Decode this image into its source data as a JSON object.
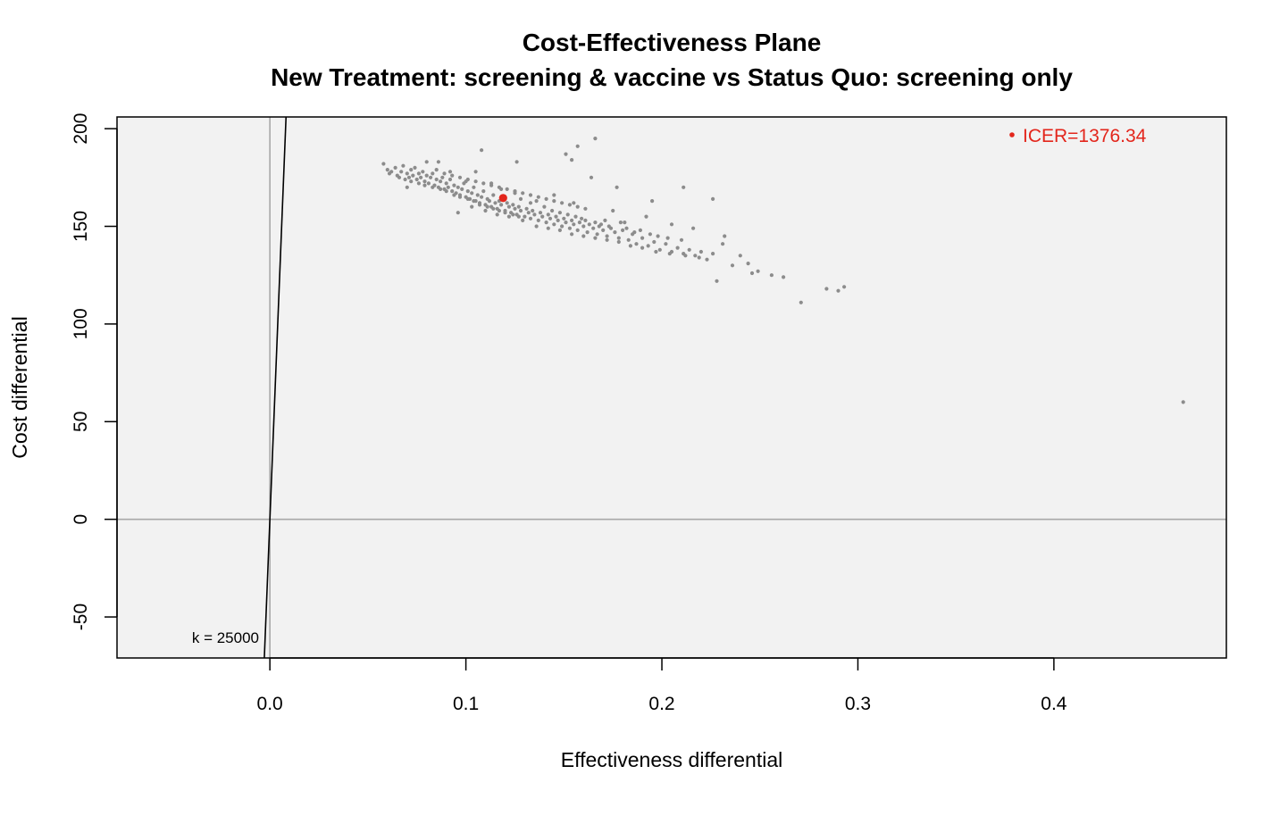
{
  "chart_data": {
    "type": "scatter",
    "title": "Cost-Effectiveness Plane",
    "subtitle": "New Treatment: screening & vaccine vs Status Quo: screening only",
    "xlabel": "Effectiveness differential",
    "ylabel": "Cost differential",
    "xlim": [
      -0.078,
      0.488
    ],
    "ylim": [
      -71,
      206
    ],
    "x_ticks": [
      0.0,
      0.1,
      0.2,
      0.3,
      0.4
    ],
    "x_tick_labels": [
      "0.0",
      "0.1",
      "0.2",
      "0.3",
      "0.4"
    ],
    "y_ticks": [
      -50,
      0,
      50,
      100,
      150,
      200
    ],
    "y_tick_labels": [
      "-50",
      "0",
      "50",
      "100",
      "150",
      "200"
    ],
    "threshold_label": "k = 25000",
    "threshold_k": 25000,
    "icer_label": "ICER=1376.34",
    "icer_point": {
      "x": 0.119,
      "y": 164.5
    },
    "colors": {
      "points": "#8c8c8c",
      "icer": "#e3261c",
      "plot_background": "#f2f2f2",
      "reference_lines": "#a8a8a8",
      "threshold_line": "#000000"
    },
    "grid": false,
    "legend_position": "top-right",
    "points": [
      [
        0.058,
        182
      ],
      [
        0.06,
        179
      ],
      [
        0.062,
        178
      ],
      [
        0.064,
        180
      ],
      [
        0.065,
        176
      ],
      [
        0.067,
        178
      ],
      [
        0.068,
        181
      ],
      [
        0.07,
        177
      ],
      [
        0.071,
        175
      ],
      [
        0.072,
        179
      ],
      [
        0.073,
        176
      ],
      [
        0.074,
        180
      ],
      [
        0.075,
        174
      ],
      [
        0.076,
        177
      ],
      [
        0.077,
        175
      ],
      [
        0.078,
        178
      ],
      [
        0.079,
        173
      ],
      [
        0.08,
        176
      ],
      [
        0.081,
        172
      ],
      [
        0.082,
        175
      ],
      [
        0.083,
        177
      ],
      [
        0.084,
        171
      ],
      [
        0.085,
        174
      ],
      [
        0.086,
        183
      ],
      [
        0.086,
        170
      ],
      [
        0.087,
        173
      ],
      [
        0.088,
        175
      ],
      [
        0.089,
        169
      ],
      [
        0.09,
        172
      ],
      [
        0.091,
        170
      ],
      [
        0.092,
        174
      ],
      [
        0.093,
        168
      ],
      [
        0.094,
        171
      ],
      [
        0.095,
        167
      ],
      [
        0.096,
        170
      ],
      [
        0.097,
        166
      ],
      [
        0.098,
        169
      ],
      [
        0.099,
        172
      ],
      [
        0.1,
        165
      ],
      [
        0.101,
        168
      ],
      [
        0.102,
        164
      ],
      [
        0.103,
        167
      ],
      [
        0.104,
        170
      ],
      [
        0.105,
        163
      ],
      [
        0.106,
        166
      ],
      [
        0.107,
        162
      ],
      [
        0.108,
        165
      ],
      [
        0.109,
        168
      ],
      [
        0.11,
        161
      ],
      [
        0.111,
        164
      ],
      [
        0.112,
        163
      ],
      [
        0.113,
        160
      ],
      [
        0.114,
        166
      ],
      [
        0.115,
        162
      ],
      [
        0.116,
        159
      ],
      [
        0.117,
        163
      ],
      [
        0.118,
        161
      ],
      [
        0.12,
        158
      ],
      [
        0.121,
        162
      ],
      [
        0.122,
        160
      ],
      [
        0.123,
        157
      ],
      [
        0.124,
        161
      ],
      [
        0.125,
        159
      ],
      [
        0.126,
        156
      ],
      [
        0.127,
        160
      ],
      [
        0.128,
        158
      ],
      [
        0.13,
        155
      ],
      [
        0.131,
        159
      ],
      [
        0.132,
        157
      ],
      [
        0.133,
        154
      ],
      [
        0.134,
        158
      ],
      [
        0.135,
        156
      ],
      [
        0.137,
        153
      ],
      [
        0.138,
        157
      ],
      [
        0.139,
        155
      ],
      [
        0.141,
        152
      ],
      [
        0.142,
        156
      ],
      [
        0.143,
        154
      ],
      [
        0.145,
        151
      ],
      [
        0.146,
        155
      ],
      [
        0.147,
        153
      ],
      [
        0.149,
        150
      ],
      [
        0.15,
        154
      ],
      [
        0.151,
        152
      ],
      [
        0.153,
        149
      ],
      [
        0.154,
        153
      ],
      [
        0.155,
        151
      ],
      [
        0.157,
        148
      ],
      [
        0.158,
        152
      ],
      [
        0.16,
        150
      ],
      [
        0.162,
        147
      ],
      [
        0.163,
        151
      ],
      [
        0.165,
        149
      ],
      [
        0.167,
        146
      ],
      [
        0.168,
        150
      ],
      [
        0.17,
        148
      ],
      [
        0.172,
        145
      ],
      [
        0.174,
        149
      ],
      [
        0.176,
        147
      ],
      [
        0.178,
        144
      ],
      [
        0.18,
        148
      ],
      [
        0.183,
        143
      ],
      [
        0.185,
        146
      ],
      [
        0.187,
        141
      ],
      [
        0.19,
        144
      ],
      [
        0.193,
        140
      ],
      [
        0.196,
        142
      ],
      [
        0.199,
        138
      ],
      [
        0.202,
        141
      ],
      [
        0.205,
        137
      ],
      [
        0.208,
        139
      ],
      [
        0.211,
        136
      ],
      [
        0.214,
        138
      ],
      [
        0.217,
        135
      ],
      [
        0.22,
        137
      ],
      [
        0.223,
        133
      ],
      [
        0.226,
        136
      ],
      [
        0.231,
        141
      ],
      [
        0.236,
        130
      ],
      [
        0.24,
        135
      ],
      [
        0.246,
        126
      ],
      [
        0.249,
        127
      ],
      [
        0.256,
        125
      ],
      [
        0.262,
        124
      ],
      [
        0.228,
        122
      ],
      [
        0.271,
        111
      ],
      [
        0.284,
        118
      ],
      [
        0.29,
        117
      ],
      [
        0.293,
        119
      ],
      [
        0.466,
        60
      ],
      [
        0.108,
        189
      ],
      [
        0.151,
        187
      ],
      [
        0.157,
        191
      ],
      [
        0.166,
        195
      ],
      [
        0.154,
        184
      ],
      [
        0.126,
        183
      ],
      [
        0.096,
        157
      ],
      [
        0.164,
        175
      ],
      [
        0.177,
        170
      ],
      [
        0.211,
        170
      ],
      [
        0.226,
        164
      ],
      [
        0.195,
        163
      ],
      [
        0.145,
        166
      ],
      [
        0.155,
        162
      ],
      [
        0.175,
        158
      ],
      [
        0.181,
        152
      ],
      [
        0.192,
        155
      ],
      [
        0.205,
        151
      ],
      [
        0.216,
        149
      ],
      [
        0.232,
        145
      ],
      [
        0.07,
        170
      ],
      [
        0.08,
        183
      ],
      [
        0.092,
        178
      ],
      [
        0.1,
        173
      ],
      [
        0.105,
        178
      ],
      [
        0.113,
        172
      ],
      [
        0.118,
        169
      ],
      [
        0.125,
        167
      ],
      [
        0.128,
        164
      ],
      [
        0.133,
        162
      ],
      [
        0.136,
        163
      ],
      [
        0.14,
        160
      ],
      [
        0.144,
        158
      ],
      [
        0.148,
        157
      ],
      [
        0.152,
        156
      ],
      [
        0.156,
        155
      ],
      [
        0.159,
        154
      ],
      [
        0.161,
        153
      ],
      [
        0.166,
        152
      ],
      [
        0.169,
        151
      ],
      [
        0.171,
        153
      ],
      [
        0.173,
        150
      ],
      [
        0.179,
        152
      ],
      [
        0.182,
        149
      ],
      [
        0.186,
        147
      ],
      [
        0.189,
        148
      ],
      [
        0.194,
        146
      ],
      [
        0.198,
        145
      ],
      [
        0.203,
        144
      ],
      [
        0.21,
        143
      ],
      [
        0.103,
        160
      ],
      [
        0.11,
        158
      ],
      [
        0.116,
        156
      ],
      [
        0.122,
        155
      ],
      [
        0.129,
        153
      ],
      [
        0.136,
        150
      ],
      [
        0.142,
        149
      ],
      [
        0.148,
        148
      ],
      [
        0.154,
        146
      ],
      [
        0.16,
        145
      ],
      [
        0.166,
        144
      ],
      [
        0.172,
        143
      ],
      [
        0.178,
        142
      ],
      [
        0.184,
        140
      ],
      [
        0.19,
        139
      ],
      [
        0.197,
        137
      ],
      [
        0.204,
        136
      ],
      [
        0.212,
        135
      ],
      [
        0.219,
        134
      ],
      [
        0.244,
        131
      ],
      [
        0.061,
        177
      ],
      [
        0.066,
        175
      ],
      [
        0.069,
        174
      ],
      [
        0.072,
        173
      ],
      [
        0.076,
        172
      ],
      [
        0.079,
        171
      ],
      [
        0.083,
        170
      ],
      [
        0.087,
        169
      ],
      [
        0.09,
        168
      ],
      [
        0.094,
        166
      ],
      [
        0.097,
        165
      ],
      [
        0.101,
        164
      ],
      [
        0.104,
        163
      ],
      [
        0.107,
        161
      ],
      [
        0.111,
        160
      ],
      [
        0.114,
        159
      ],
      [
        0.117,
        158
      ],
      [
        0.12,
        157
      ],
      [
        0.124,
        156
      ],
      [
        0.127,
        155
      ],
      [
        0.085,
        179
      ],
      [
        0.089,
        177
      ],
      [
        0.093,
        176
      ],
      [
        0.097,
        175
      ],
      [
        0.101,
        174
      ],
      [
        0.105,
        173
      ],
      [
        0.109,
        172
      ],
      [
        0.113,
        171
      ],
      [
        0.117,
        170
      ],
      [
        0.121,
        169
      ],
      [
        0.125,
        168
      ],
      [
        0.129,
        167
      ],
      [
        0.133,
        166
      ],
      [
        0.137,
        165
      ],
      [
        0.141,
        164
      ],
      [
        0.145,
        163
      ],
      [
        0.149,
        162
      ],
      [
        0.153,
        161
      ],
      [
        0.157,
        160
      ],
      [
        0.161,
        159
      ]
    ]
  }
}
